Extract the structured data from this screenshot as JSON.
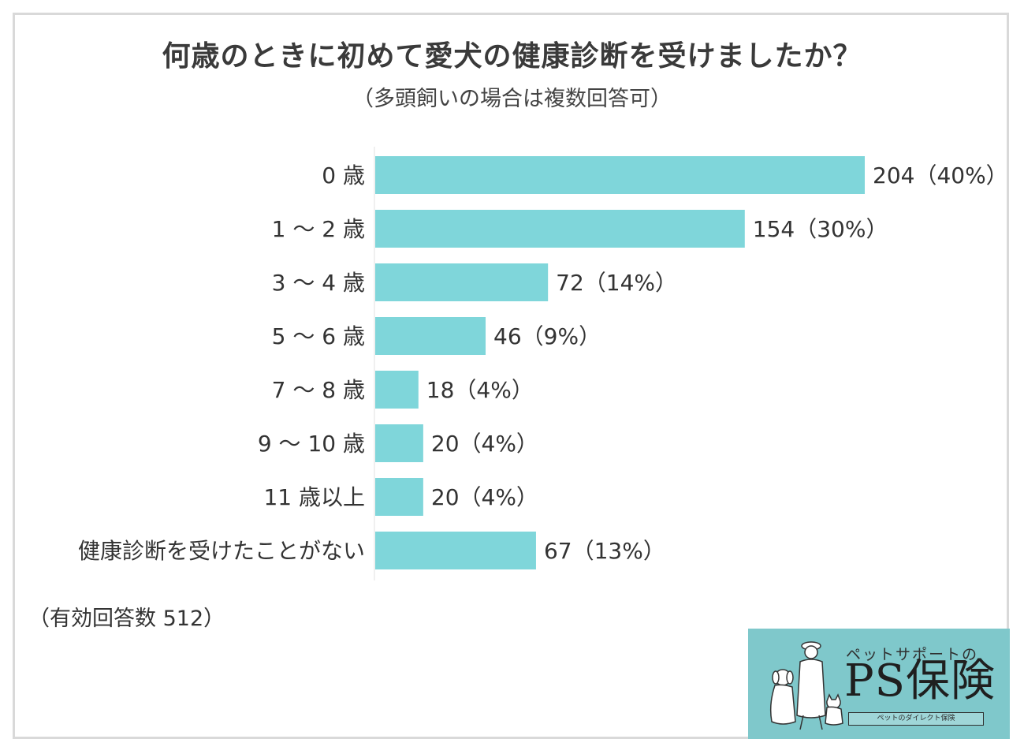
{
  "chart_data": {
    "type": "bar",
    "orientation": "horizontal",
    "title": "何歳のときに初めて愛犬の健康診断を受けましたか？",
    "subtitle": "（多頭飼いの場合は複数回答可）",
    "categories": [
      "0 歳",
      "1 ～ 2 歳",
      "3 ～ 4 歳",
      "5 ～ 6 歳",
      "7 ～ 8 歳",
      "9 ～ 10 歳",
      "11 歳以上",
      "健康診断を受けたことがない"
    ],
    "values": [
      204,
      154,
      72,
      46,
      18,
      20,
      20,
      67
    ],
    "percent": [
      "40%",
      "30%",
      "14%",
      "9%",
      "4%",
      "4%",
      "4%",
      "13%"
    ],
    "value_labels": [
      "204（40%）",
      "154（30%）",
      "72（14%）",
      "46（9%）",
      "18（4%）",
      "20（4%）",
      "20（4%）",
      "67（13%）"
    ],
    "xlim": [
      0,
      204
    ],
    "grid": false,
    "colors": {
      "bar": "#7fd6da",
      "axis": "#e0e0e0"
    }
  },
  "note": "（有効回答数 512）",
  "logo": {
    "tagline": "ペットサポートの",
    "name": "PS保険",
    "subline": "ペットのダイレクト保険",
    "background": "#7fc8cb"
  }
}
